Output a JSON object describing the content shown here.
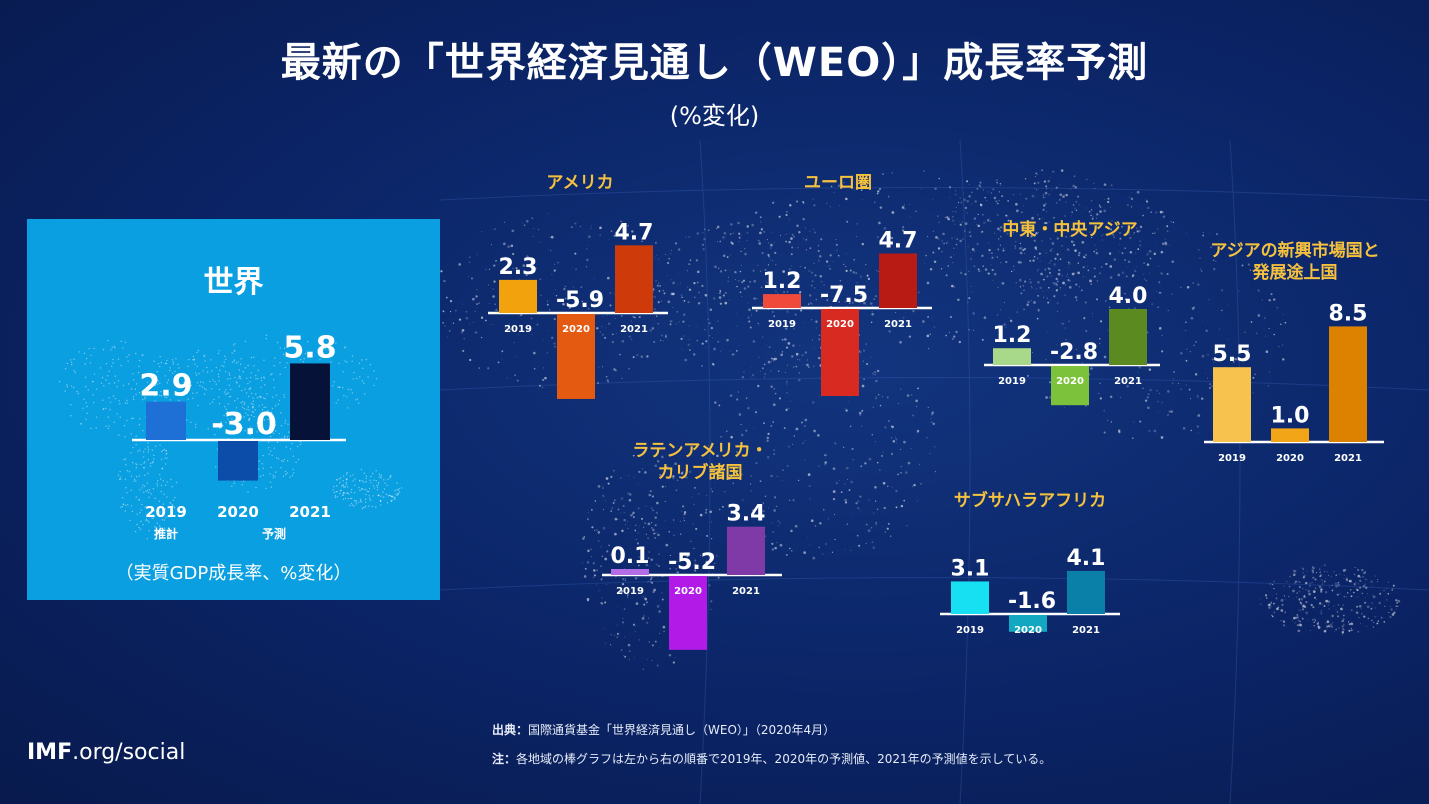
{
  "title": "最新の「世界経済見通し（WEO）」成長率予測",
  "subtitle": "(%変化)",
  "world": {
    "title": "世界",
    "estimate_label": "推計",
    "forecast_label": "予測",
    "note": "（実質GDP成長率、%変化）"
  },
  "footer": {
    "source_label": "出典：",
    "source_text": "国際通貨基金「世界経済見通し（WEO）」（2020年4月）",
    "note_label": "注：",
    "note_text": "各地域の棒グラフは左から右の順番で2019年、2020年の予測値、2021年の予測値を示している。",
    "brand_bold": "IMF",
    "brand_rest": ".org/social"
  },
  "colors": {
    "accent": "#f6c23e",
    "world_panel": "#0a9fe0"
  },
  "chart_data": [
    {
      "type": "bar",
      "title": "世界",
      "categories": [
        "2019",
        "2020",
        "2021"
      ],
      "values": [
        2.9,
        -3.0,
        5.8
      ],
      "colors": [
        "#1e6fd6",
        "#0b4da8",
        "#061238"
      ]
    },
    {
      "type": "bar",
      "title": "アメリカ",
      "categories": [
        "2019",
        "2020",
        "2021"
      ],
      "values": [
        2.3,
        -5.9,
        4.7
      ],
      "colors": [
        "#f2a20c",
        "#e35a10",
        "#cf3a0a"
      ]
    },
    {
      "type": "bar",
      "title": "ユーロ圏",
      "categories": [
        "2019",
        "2020",
        "2021"
      ],
      "values": [
        1.2,
        -7.5,
        4.7
      ],
      "colors": [
        "#ef4a3a",
        "#d92a22",
        "#b81a14"
      ]
    },
    {
      "type": "bar",
      "title": "中東・中央アジア",
      "categories": [
        "2019",
        "2020",
        "2021"
      ],
      "values": [
        1.2,
        -2.8,
        4.0
      ],
      "colors": [
        "#a8d88a",
        "#7cc23a",
        "#5a8a20"
      ]
    },
    {
      "type": "bar",
      "title": "アジアの新興市場国と発展途上国",
      "categories": [
        "2019",
        "2020",
        "2021"
      ],
      "values": [
        5.5,
        1.0,
        8.5
      ],
      "colors": [
        "#f7c24e",
        "#f2a516",
        "#dd8200"
      ]
    },
    {
      "type": "bar",
      "title": "ラテンアメリカ・カリブ諸国",
      "categories": [
        "2019",
        "2020",
        "2021"
      ],
      "values": [
        0.1,
        -5.2,
        3.4
      ],
      "colors": [
        "#b36ee6",
        "#b21ae8",
        "#7f3aa8"
      ]
    },
    {
      "type": "bar",
      "title": "サブサハラアフリカ",
      "categories": [
        "2019",
        "2020",
        "2021"
      ],
      "values": [
        3.1,
        -1.6,
        4.1
      ],
      "colors": [
        "#16e0f2",
        "#12a8c2",
        "#0a7fa8"
      ]
    }
  ]
}
